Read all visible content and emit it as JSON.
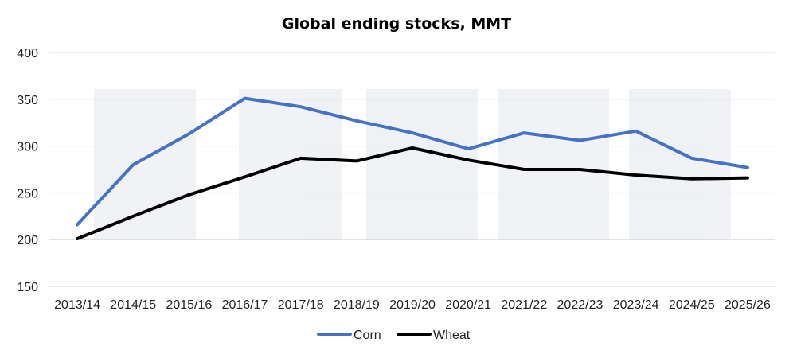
{
  "chart_data": {
    "type": "line",
    "title": "Global ending stocks, MMT",
    "xlabel": "",
    "ylabel": "",
    "categories": [
      "2013/14",
      "2014/15",
      "2015/16",
      "2016/17",
      "2017/18",
      "2018/19",
      "2019/20",
      "2020/21",
      "2021/22",
      "2022/23",
      "2023/24",
      "2024/25",
      "2025/26"
    ],
    "ylim": [
      150,
      400
    ],
    "yticks": [
      150,
      200,
      250,
      300,
      350,
      400
    ],
    "grid": true,
    "legend_position": "bottom",
    "series": [
      {
        "name": "Corn",
        "color": "#4472c4",
        "values": [
          216,
          280,
          313,
          351,
          342,
          327,
          314,
          297,
          314,
          306,
          316,
          287,
          277
        ]
      },
      {
        "name": "Wheat",
        "color": "#000000",
        "values": [
          201,
          225,
          248,
          267,
          287,
          284,
          298,
          285,
          275,
          275,
          269,
          265,
          266
        ]
      }
    ]
  }
}
